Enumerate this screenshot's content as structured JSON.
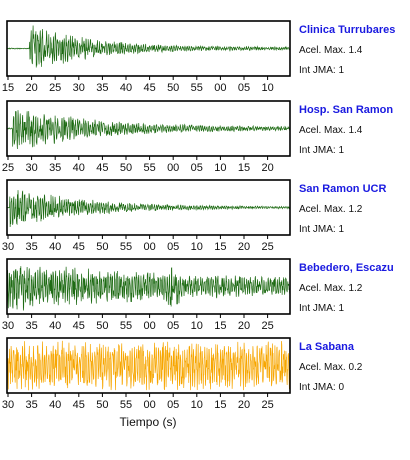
{
  "colors": {
    "trace": "#1e6b14",
    "trace_last": "#f7a600",
    "station_title": "#1a1ae0",
    "frame": "#000000"
  },
  "xlabel": "Tiempo (s)",
  "chart_data": {
    "type": "line",
    "xlabel": "Tiempo (s)",
    "ylabel": "",
    "panels": [
      {
        "station": "Clinica Turrubares",
        "acel_label": "Acel. Max. 1.4",
        "jma_label": "Int JMA: 1",
        "tick_labels": [
          "15",
          "20",
          "25",
          "30",
          "35",
          "40",
          "45",
          "50",
          "55",
          "00",
          "05",
          "10"
        ],
        "envelope": {
          "onset": 0.08,
          "peak": 0.95,
          "decay": 4.2,
          "noise": 0.05,
          "peak_pos": 0.1
        },
        "bursts": [],
        "n_ticks_shown": 12
      },
      {
        "station": "Hosp. San Ramon",
        "acel_label": "Acel. Max. 1.4",
        "jma_label": "Int JMA: 1",
        "tick_labels": [
          "25",
          "30",
          "35",
          "40",
          "45",
          "50",
          "55",
          "00",
          "05",
          "10",
          "15",
          "20"
        ],
        "envelope": {
          "onset": 0.02,
          "peak": 0.9,
          "decay": 3.5,
          "noise": 0.06,
          "peak_pos": 0.05
        },
        "bursts": []
      },
      {
        "station": "San Ramon UCR",
        "acel_label": "Acel. Max. 1.2",
        "jma_label": "Int JMA: 1",
        "tick_labels": [
          "30",
          "35",
          "40",
          "45",
          "50",
          "55",
          "00",
          "05",
          "10",
          "15",
          "20",
          "25"
        ],
        "envelope": {
          "onset": 0.01,
          "peak": 0.85,
          "decay": 3.8,
          "noise": 0.03,
          "peak_pos": 0.04
        },
        "bursts": []
      },
      {
        "station": "Bebedero, Escazu",
        "acel_label": "Acel. Max. 1.2",
        "jma_label": "Int JMA: 1",
        "tick_labels": [
          "30",
          "35",
          "40",
          "45",
          "50",
          "55",
          "00",
          "05",
          "10",
          "15",
          "20",
          "25"
        ],
        "envelope": {
          "onset": 0.0,
          "peak": 0.8,
          "decay": 1.6,
          "noise": 0.22,
          "peak_pos": 0.02
        },
        "bursts": [
          {
            "pos": 0.585,
            "width": 0.02,
            "amp": 0.95
          }
        ]
      },
      {
        "station": "La Sabana",
        "acel_label": "Acel. Max. 0.2",
        "jma_label": "Int JMA: 0",
        "tick_labels": [
          "30",
          "35",
          "40",
          "45",
          "50",
          "55",
          "00",
          "05",
          "10",
          "15",
          "20",
          "25"
        ],
        "envelope": {
          "onset": 0.0,
          "peak": 0.55,
          "decay": 0.0,
          "noise": 0.45,
          "peak_pos": 0.0
        },
        "bursts": [
          {
            "pos": 0.83,
            "width": 0.18,
            "amp": 0.5
          }
        ]
      }
    ]
  }
}
